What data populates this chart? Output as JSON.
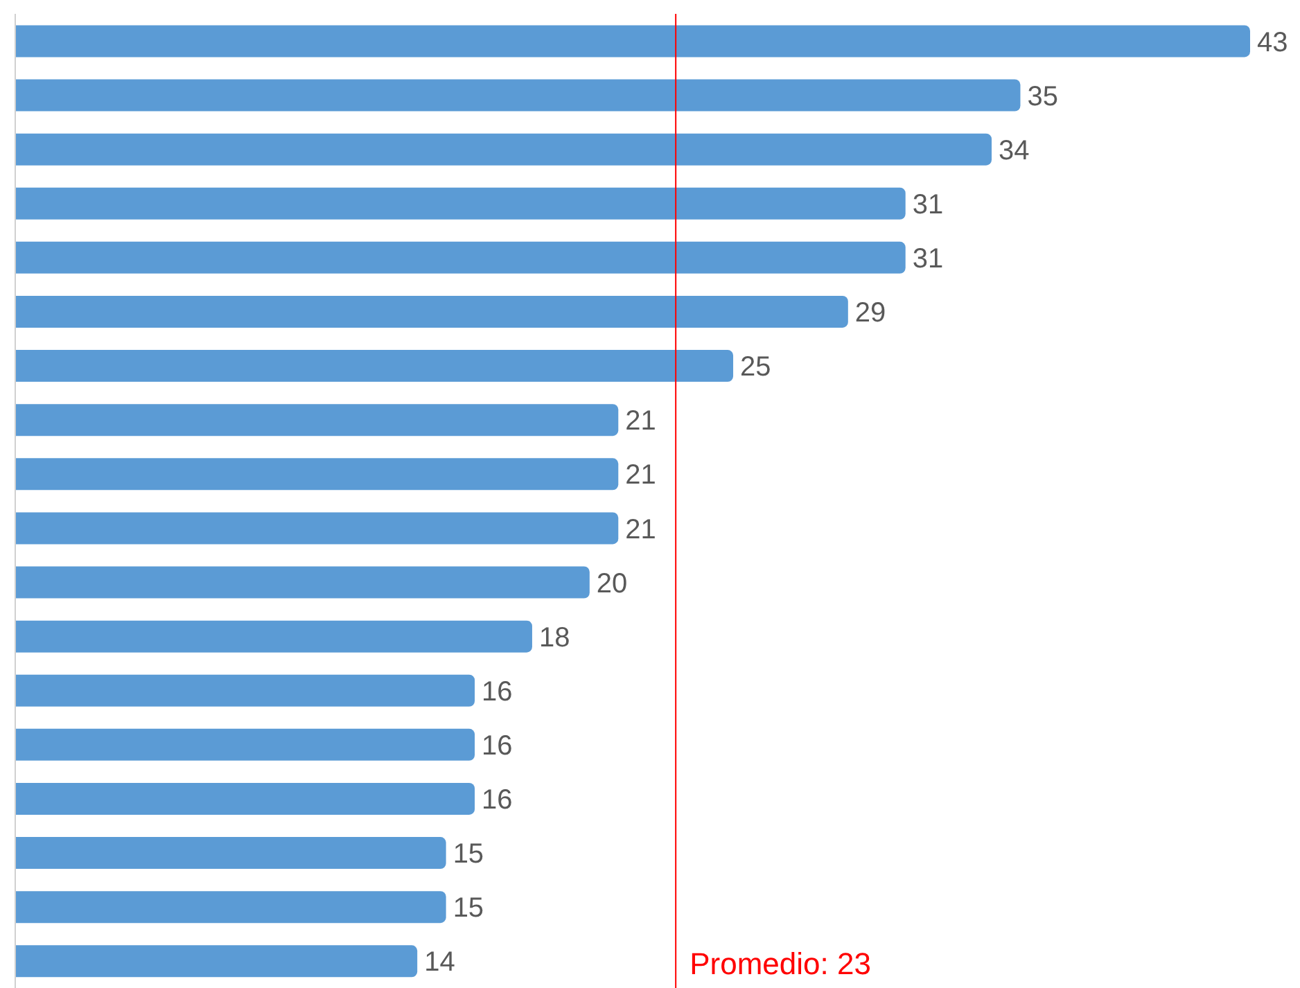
{
  "chart_data": {
    "type": "bar",
    "orientation": "horizontal",
    "categories": [
      null,
      null,
      null,
      null,
      null,
      null,
      null,
      null,
      null,
      null,
      null,
      null,
      null,
      null,
      null,
      null,
      null,
      null
    ],
    "values": [
      43,
      35,
      34,
      31,
      31,
      29,
      25,
      21,
      21,
      21,
      20,
      18,
      16,
      16,
      16,
      15,
      15,
      14
    ],
    "color": "#5b9bd5",
    "data_labels": true,
    "grid": false,
    "legend": false,
    "tick_labels": false,
    "ref_lines": [
      {
        "axis": "x",
        "value": 23,
        "label": "Promedio: 23",
        "color": "#ff0000"
      }
    ]
  }
}
